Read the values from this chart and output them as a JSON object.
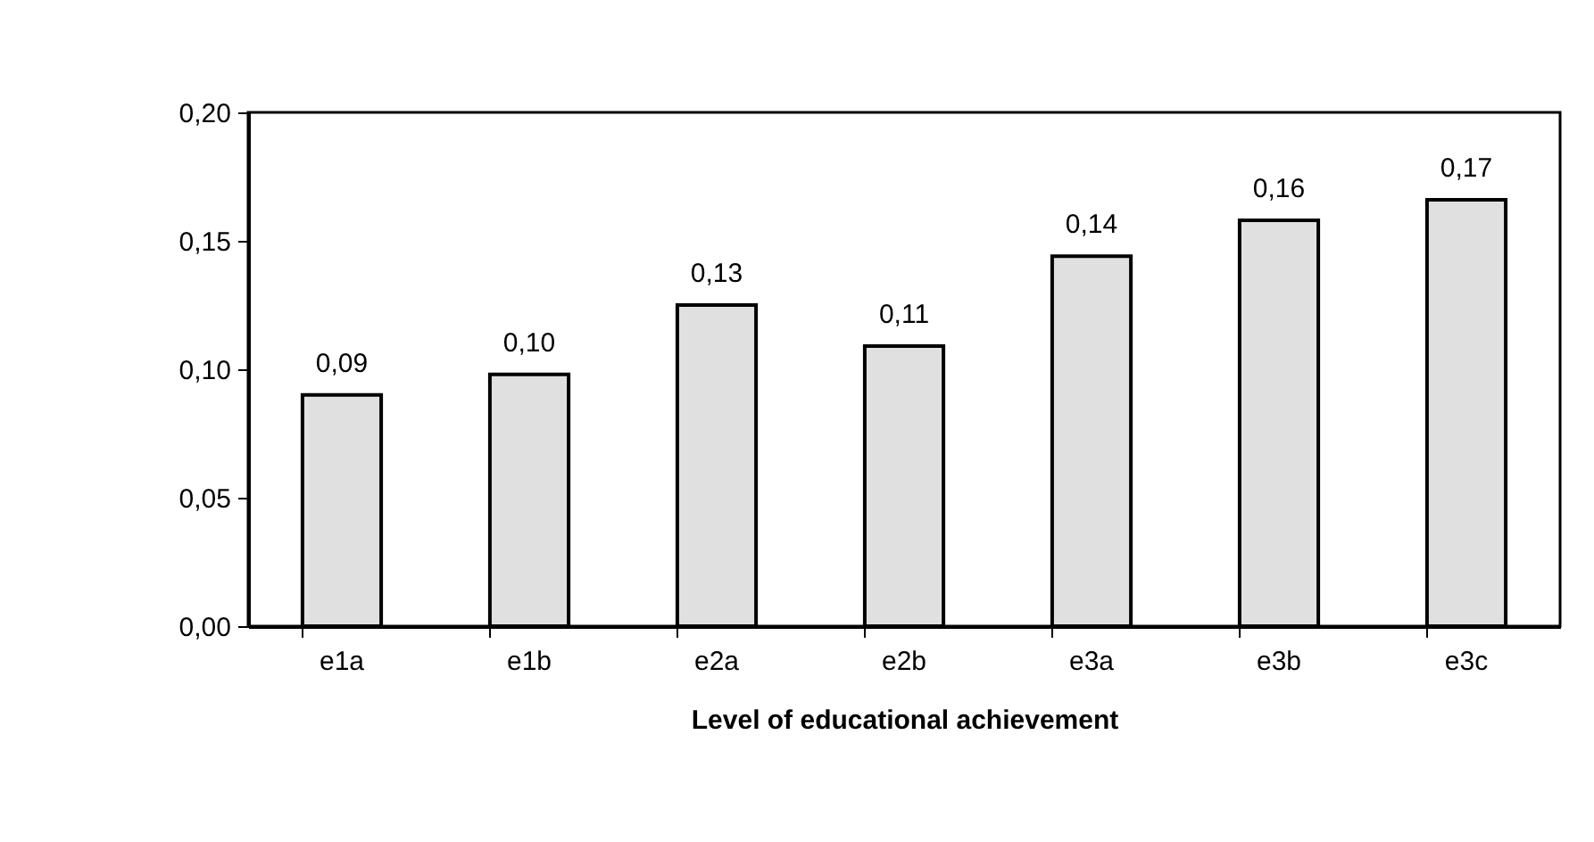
{
  "chart_data": {
    "type": "bar",
    "xlabel": "Level of educational achievement",
    "categories": [
      "e1a",
      "e1b",
      "e2a",
      "e2b",
      "e3a",
      "e3b",
      "e3c"
    ],
    "values": [
      0.09,
      0.098,
      0.125,
      0.109,
      0.144,
      0.158,
      0.166
    ],
    "value_labels": [
      "0,09",
      "0,10",
      "0,13",
      "0,11",
      "0,14",
      "0,16",
      "0,17"
    ],
    "color": "#e0e0e0",
    "ylim": [
      0,
      0.2
    ],
    "yticks": [
      {
        "value": 0,
        "label": "0,00"
      },
      {
        "value": 0.05,
        "label": "0,05"
      },
      {
        "value": 0.1,
        "label": "0,10"
      },
      {
        "value": 0.15,
        "label": "0,15"
      },
      {
        "value": 0.2,
        "label": "0,20"
      }
    ],
    "grid": false
  }
}
